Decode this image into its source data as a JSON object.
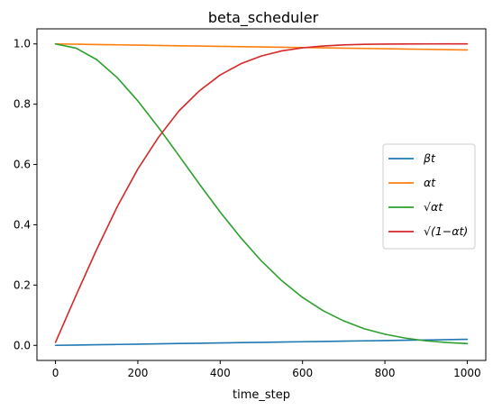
{
  "chart_data": {
    "type": "line",
    "title": "beta_scheduler",
    "xlabel": "time_step",
    "ylabel": "",
    "xlim": [
      -45,
      1045
    ],
    "ylim": [
      -0.05,
      1.05
    ],
    "xticks": [
      0,
      200,
      400,
      600,
      800,
      1000
    ],
    "xtick_labels": [
      "0",
      "200",
      "400",
      "600",
      "800",
      "1000"
    ],
    "yticks": [
      0.0,
      0.2,
      0.4,
      0.6,
      0.8,
      1.0
    ],
    "ytick_labels": [
      "0.0",
      "0.2",
      "0.4",
      "0.6",
      "0.8",
      "1.0"
    ],
    "grid": false,
    "legend_position": "center-right",
    "x": [
      0,
      50,
      100,
      150,
      200,
      250,
      300,
      350,
      400,
      450,
      500,
      550,
      600,
      650,
      700,
      750,
      800,
      850,
      900,
      950,
      1000
    ],
    "series": [
      {
        "name": "βt",
        "color": "#1f77b4",
        "values": [
          0.0001,
          0.0011,
          0.0021,
          0.0031,
          0.0041,
          0.0051,
          0.0061,
          0.0071,
          0.0081,
          0.0091,
          0.0101,
          0.011,
          0.012,
          0.013,
          0.014,
          0.015,
          0.016,
          0.017,
          0.018,
          0.019,
          0.02
        ]
      },
      {
        "name": "αt",
        "color": "#ff7f0e",
        "values": [
          0.9999,
          0.9989,
          0.9979,
          0.9969,
          0.9959,
          0.9949,
          0.9939,
          0.9929,
          0.9919,
          0.9909,
          0.9899,
          0.989,
          0.988,
          0.987,
          0.986,
          0.985,
          0.984,
          0.983,
          0.982,
          0.981,
          0.98
        ]
      },
      {
        "name": "√αt",
        "color": "#2ca02c",
        "values": [
          1.0,
          0.986,
          0.948,
          0.888,
          0.811,
          0.723,
          0.629,
          0.534,
          0.442,
          0.357,
          0.28,
          0.214,
          0.159,
          0.115,
          0.081,
          0.055,
          0.037,
          0.024,
          0.015,
          0.0095,
          0.006
        ]
      },
      {
        "name": "√(1−αt)",
        "color": "#d62728",
        "values": [
          0.01,
          0.166,
          0.318,
          0.46,
          0.585,
          0.69,
          0.778,
          0.845,
          0.897,
          0.934,
          0.96,
          0.977,
          0.987,
          0.993,
          0.9967,
          0.9985,
          0.9993,
          0.9997,
          0.9999,
          1.0,
          1.0
        ]
      }
    ]
  }
}
